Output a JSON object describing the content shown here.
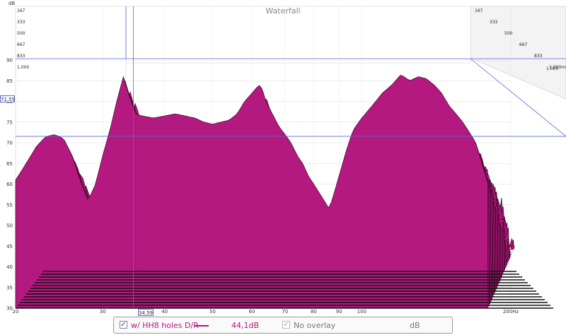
{
  "chart_data": {
    "type": "area",
    "title": "Waterfall",
    "y_unit": "dB",
    "x_unit": "Hz",
    "x_scale": "log",
    "xlim": [
      20,
      200
    ],
    "ylim": [
      30,
      90
    ],
    "x_ticks": [
      "20",
      "30",
      "40",
      "50",
      "60",
      "70",
      "80",
      "90",
      "100",
      "200Hz"
    ],
    "y_ticks": [
      "30",
      "35",
      "40",
      "45",
      "50",
      "55",
      "60",
      "65",
      "70",
      "75",
      "80",
      "85",
      "90"
    ],
    "time_axis_ms": [
      "167",
      "333",
      "500",
      "667",
      "833",
      "1.000ms"
    ],
    "time_axis_left": [
      "167",
      "333",
      "500",
      "667",
      "833",
      "1.000"
    ],
    "time_axis_right_marker": "1.000",
    "slice_count": 28,
    "front_response": [
      [
        20,
        61
      ],
      [
        21,
        65
      ],
      [
        22,
        69
      ],
      [
        23,
        71.5
      ],
      [
        24,
        72
      ],
      [
        25,
        71
      ],
      [
        26,
        67
      ],
      [
        27,
        61
      ],
      [
        28,
        56
      ],
      [
        29,
        60
      ],
      [
        30,
        67
      ],
      [
        31,
        73
      ],
      [
        32,
        80
      ],
      [
        33,
        86
      ],
      [
        34,
        81
      ],
      [
        35,
        77
      ],
      [
        36,
        76.5
      ],
      [
        38,
        76
      ],
      [
        40,
        76.5
      ],
      [
        42,
        77
      ],
      [
        44,
        76.5
      ],
      [
        46,
        76
      ],
      [
        48,
        75
      ],
      [
        50,
        74.5
      ],
      [
        52,
        75
      ],
      [
        54,
        75.5
      ],
      [
        56,
        77
      ],
      [
        58,
        80
      ],
      [
        60,
        82
      ],
      [
        62,
        84
      ],
      [
        63,
        83
      ],
      [
        64,
        80
      ],
      [
        66,
        77
      ],
      [
        68,
        74
      ],
      [
        70,
        72
      ],
      [
        72,
        70
      ],
      [
        74,
        67
      ],
      [
        76,
        65
      ],
      [
        78,
        62
      ],
      [
        80,
        60
      ],
      [
        82,
        58
      ],
      [
        84,
        56
      ],
      [
        86,
        54
      ],
      [
        88,
        58
      ],
      [
        90,
        62
      ],
      [
        93,
        68
      ],
      [
        96,
        73
      ],
      [
        100,
        76
      ],
      [
        105,
        79
      ],
      [
        110,
        82
      ],
      [
        115,
        84
      ],
      [
        120,
        86.5
      ],
      [
        125,
        85
      ],
      [
        130,
        86
      ],
      [
        135,
        85.5
      ],
      [
        140,
        84
      ],
      [
        145,
        82
      ],
      [
        150,
        79
      ],
      [
        160,
        75
      ],
      [
        170,
        70
      ],
      [
        180,
        60
      ],
      [
        190,
        50
      ],
      [
        200,
        40
      ]
    ],
    "cursor": {
      "x": "34.59",
      "y": "71.55"
    },
    "legend": [
      {
        "label": "w/ HH8 holes D/R",
        "color": "#b0197f",
        "value": "44,1dB",
        "checked": true
      },
      {
        "label": "No overlay",
        "checked": true,
        "disabled": true
      }
    ],
    "legend_unit": "dB",
    "colors": {
      "fill": "#b3197f",
      "outline": "#2a0018",
      "plot_bg": "#ffffff",
      "header_bg": "#ececec",
      "grid": "#d0d0d0",
      "cursor": "#5b69d6"
    }
  }
}
